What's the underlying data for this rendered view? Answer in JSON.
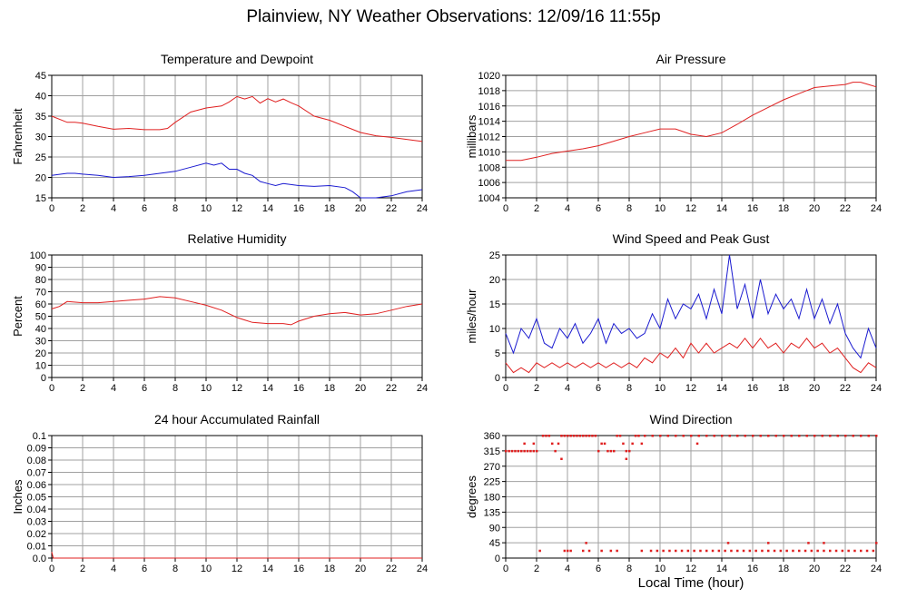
{
  "page": {
    "title": "Plainview, NY Weather Observations: 12/09/16 11:55p",
    "x_axis_title": "Local Time (hour)"
  },
  "colors": {
    "red": "#e02020",
    "blue": "#1a1ad0",
    "grid": "#a0a0a0"
  },
  "chart_data": [
    {
      "type": "line",
      "title": "Temperature and Dewpoint",
      "ylabel": "Fahrenheit",
      "xlim": [
        0,
        24
      ],
      "ylim": [
        15,
        45
      ],
      "xticks": [
        0,
        2,
        4,
        6,
        8,
        10,
        12,
        14,
        16,
        18,
        20,
        22,
        24
      ],
      "yticks": [
        15,
        20,
        25,
        30,
        35,
        40,
        45
      ],
      "grid": true,
      "series": [
        {
          "color": "red",
          "x": [
            0,
            1,
            1.5,
            2,
            3,
            4,
            5,
            6,
            7,
            7.5,
            8,
            9,
            10,
            11,
            11.5,
            12,
            12.5,
            13,
            13.5,
            14,
            14.5,
            15,
            15.5,
            16,
            17,
            18,
            19,
            20,
            21,
            22,
            23,
            24
          ],
          "y": [
            35,
            33.5,
            33.5,
            33.3,
            32.5,
            31.8,
            32,
            31.7,
            31.7,
            32,
            33.5,
            36,
            37,
            37.5,
            38.5,
            39.8,
            39.2,
            39.8,
            38.2,
            39.3,
            38.5,
            39.2,
            38.3,
            37.5,
            35,
            34,
            32.5,
            31,
            30.2,
            29.8,
            29.3,
            28.8
          ]
        },
        {
          "color": "blue",
          "x": [
            0,
            1,
            1.5,
            2,
            3,
            4,
            5,
            6,
            7,
            8,
            9,
            10,
            10.5,
            11,
            11.5,
            12,
            12.5,
            13,
            13.5,
            14,
            14.5,
            15,
            16,
            17,
            18,
            19,
            19.5,
            20,
            21,
            22,
            23,
            24
          ],
          "y": [
            20.5,
            21,
            21,
            20.8,
            20.5,
            20,
            20.2,
            20.5,
            21,
            21.5,
            22.5,
            23.5,
            23,
            23.5,
            22,
            22,
            21,
            20.5,
            19,
            18.5,
            18,
            18.5,
            18,
            17.8,
            18,
            17.5,
            16.5,
            15,
            15,
            15.5,
            16.5,
            17
          ]
        }
      ]
    },
    {
      "type": "line",
      "title": "Air Pressure",
      "ylabel": "millibars",
      "xlim": [
        0,
        24
      ],
      "ylim": [
        1004,
        1020
      ],
      "xticks": [
        0,
        2,
        4,
        6,
        8,
        10,
        12,
        14,
        16,
        18,
        20,
        22,
        24
      ],
      "yticks": [
        1004,
        1006,
        1008,
        1010,
        1012,
        1014,
        1016,
        1018,
        1020
      ],
      "grid": true,
      "series": [
        {
          "color": "red",
          "x": [
            0,
            1,
            2,
            3,
            4,
            5,
            6,
            7,
            8,
            9,
            10,
            11,
            12,
            13,
            14,
            15,
            16,
            17,
            18,
            19,
            20,
            21,
            22,
            22.5,
            23,
            23.5,
            24
          ],
          "y": [
            1008.9,
            1008.9,
            1009.3,
            1009.8,
            1010.1,
            1010.4,
            1010.8,
            1011.4,
            1012,
            1012.5,
            1013,
            1013,
            1012.3,
            1012,
            1012.5,
            1013.6,
            1014.8,
            1015.8,
            1016.8,
            1017.6,
            1018.4,
            1018.6,
            1018.8,
            1019.1,
            1019.1,
            1018.8,
            1018.5
          ]
        }
      ]
    },
    {
      "type": "line",
      "title": "Relative Humidity",
      "ylabel": "Percent",
      "xlim": [
        0,
        24
      ],
      "ylim": [
        0,
        100
      ],
      "xticks": [
        0,
        2,
        4,
        6,
        8,
        10,
        12,
        14,
        16,
        18,
        20,
        22,
        24
      ],
      "yticks": [
        0,
        10,
        20,
        30,
        40,
        50,
        60,
        70,
        80,
        90,
        100
      ],
      "grid": true,
      "series": [
        {
          "color": "red",
          "x": [
            0,
            0.5,
            1,
            2,
            3,
            4,
            5,
            6,
            7,
            8,
            9,
            10,
            11,
            12,
            12.5,
            13,
            14,
            15,
            15.5,
            16,
            17,
            18,
            19,
            20,
            21,
            22,
            23,
            24
          ],
          "y": [
            56,
            58,
            62,
            61,
            61,
            62,
            63,
            64,
            66,
            65,
            62,
            59,
            55,
            49,
            47,
            45,
            44,
            44,
            43,
            46,
            50,
            52,
            53,
            51,
            52,
            55,
            58,
            60
          ]
        }
      ]
    },
    {
      "type": "line",
      "title": "Wind Speed and Peak Gust",
      "ylabel": "miles/hour",
      "xlim": [
        0,
        24
      ],
      "ylim": [
        0,
        25
      ],
      "xticks": [
        0,
        2,
        4,
        6,
        8,
        10,
        12,
        14,
        16,
        18,
        20,
        22,
        24
      ],
      "yticks": [
        0,
        5,
        10,
        15,
        20,
        25
      ],
      "grid": true,
      "series": [
        {
          "color": "blue",
          "x": [
            0,
            0.5,
            1,
            1.5,
            2,
            2.5,
            3,
            3.5,
            4,
            4.5,
            5,
            5.5,
            6,
            6.5,
            7,
            7.5,
            8,
            8.5,
            9,
            9.5,
            10,
            10.5,
            11,
            11.5,
            12,
            12.5,
            13,
            13.5,
            14,
            14.5,
            15,
            15.5,
            16,
            16.5,
            17,
            17.5,
            18,
            18.5,
            19,
            19.5,
            20,
            20.5,
            21,
            21.5,
            22,
            22.5,
            23,
            23.5,
            24
          ],
          "y": [
            9,
            5,
            10,
            8,
            12,
            7,
            6,
            10,
            8,
            11,
            7,
            9,
            12,
            7,
            11,
            9,
            10,
            8,
            9,
            13,
            10,
            16,
            12,
            15,
            14,
            17,
            12,
            18,
            13,
            25,
            14,
            19,
            12,
            20,
            13,
            17,
            14,
            16,
            12,
            18,
            12,
            16,
            11,
            15,
            9,
            6,
            4,
            10,
            6
          ]
        },
        {
          "color": "red",
          "x": [
            0,
            0.5,
            1,
            1.5,
            2,
            2.5,
            3,
            3.5,
            4,
            4.5,
            5,
            5.5,
            6,
            6.5,
            7,
            7.5,
            8,
            8.5,
            9,
            9.5,
            10,
            10.5,
            11,
            11.5,
            12,
            12.5,
            13,
            13.5,
            14,
            14.5,
            15,
            15.5,
            16,
            16.5,
            17,
            17.5,
            18,
            18.5,
            19,
            19.5,
            20,
            20.5,
            21,
            21.5,
            22,
            22.5,
            23,
            23.5,
            24
          ],
          "y": [
            3,
            1,
            2,
            1,
            3,
            2,
            3,
            2,
            3,
            2,
            3,
            2,
            3,
            2,
            3,
            2,
            3,
            2,
            4,
            3,
            5,
            4,
            6,
            4,
            7,
            5,
            7,
            5,
            6,
            7,
            6,
            8,
            6,
            8,
            6,
            7,
            5,
            7,
            6,
            8,
            6,
            7,
            5,
            6,
            4,
            2,
            1,
            3,
            2
          ]
        }
      ]
    },
    {
      "type": "line",
      "title": "24 hour Accumulated Rainfall",
      "ylabel": "Inches",
      "xlim": [
        0,
        24
      ],
      "ylim": [
        0,
        0.1
      ],
      "xticks": [
        0,
        2,
        4,
        6,
        8,
        10,
        12,
        14,
        16,
        18,
        20,
        22,
        24
      ],
      "yticks": [
        0.0,
        0.01,
        0.02,
        0.03,
        0.04,
        0.05,
        0.06,
        0.07,
        0.08,
        0.09,
        0.1
      ],
      "ytick_labels": [
        "0.0",
        "0.01",
        "0.02",
        "0.03",
        "0.04",
        "0.05",
        "0.06",
        "0.07",
        "0.08",
        "0.09",
        "0.1"
      ],
      "grid": true,
      "series": [
        {
          "color": "red",
          "x": [
            0,
            0.1,
            24
          ],
          "y": [
            0.005,
            0,
            0
          ]
        }
      ]
    },
    {
      "type": "scatter",
      "title": "Wind Direction",
      "ylabel": "degrees",
      "xlim": [
        0,
        24
      ],
      "ylim": [
        0,
        360
      ],
      "xticks": [
        0,
        2,
        4,
        6,
        8,
        10,
        12,
        14,
        16,
        18,
        20,
        22,
        24
      ],
      "yticks": [
        0,
        45,
        90,
        135,
        180,
        225,
        270,
        315,
        360
      ],
      "grid": true,
      "series": [
        {
          "color": "red",
          "x": [
            0,
            0.2,
            0.4,
            0.6,
            0.8,
            1,
            1.2,
            1.4,
            1.6,
            1.8,
            2,
            1.2,
            1.8,
            2.4,
            2.6,
            2.8,
            3,
            3.2,
            3.4,
            3.6,
            3.8,
            4,
            4.2,
            4.4,
            4.6,
            4.8,
            5,
            5.2,
            5.4,
            5.6,
            5.8,
            6,
            6.2,
            6.4,
            6.6,
            6.8,
            7,
            7.2,
            7.4,
            7.6,
            7.8,
            8,
            8.2,
            8.4,
            8.6,
            8.8,
            9,
            9.5,
            10,
            10.5,
            11,
            11.5,
            12,
            12.5,
            13,
            13.5,
            14,
            14.5,
            15,
            15.5,
            16,
            16.5,
            17,
            17.5,
            18,
            18.5,
            19,
            19.5,
            20,
            20.5,
            21,
            21.5,
            22,
            22.5,
            23,
            23.5,
            24,
            2.2,
            3.8,
            4,
            4.2,
            5,
            5.4,
            6.2,
            6.8,
            7.2,
            8.8,
            9.4,
            9.8,
            10.2,
            10.6,
            11,
            11.4,
            11.8,
            12.2,
            12.6,
            13,
            13.4,
            13.8,
            14.2,
            14.6,
            15,
            15.4,
            15.8,
            16.2,
            16.6,
            17,
            17.4,
            17.8,
            18.2,
            18.6,
            19,
            19.4,
            19.8,
            20.2,
            20.6,
            21,
            21.4,
            21.8,
            22.2,
            22.6,
            23,
            23.4,
            23.8,
            3.6,
            7.8,
            12.4,
            5.2,
            14.4,
            17,
            19.6,
            20.6,
            24
          ],
          "y": [
            315,
            315,
            315,
            315,
            315,
            315,
            315,
            315,
            315,
            315,
            315,
            337,
            337,
            360,
            360,
            360,
            337,
            315,
            337,
            360,
            360,
            360,
            360,
            360,
            360,
            360,
            360,
            360,
            360,
            360,
            360,
            315,
            337,
            337,
            315,
            315,
            315,
            360,
            360,
            337,
            315,
            315,
            337,
            360,
            360,
            337,
            360,
            360,
            360,
            360,
            360,
            360,
            360,
            360,
            360,
            360,
            360,
            360,
            360,
            360,
            360,
            360,
            360,
            360,
            360,
            360,
            360,
            360,
            360,
            360,
            360,
            360,
            360,
            360,
            360,
            360,
            360,
            22,
            22,
            22,
            22,
            22,
            22,
            22,
            22,
            22,
            22,
            22,
            22,
            22,
            22,
            22,
            22,
            22,
            22,
            22,
            22,
            22,
            22,
            22,
            22,
            22,
            22,
            22,
            22,
            22,
            22,
            22,
            22,
            22,
            22,
            22,
            22,
            22,
            22,
            22,
            22,
            22,
            22,
            22,
            22,
            22,
            22,
            22,
            292,
            292,
            337,
            45,
            45,
            45,
            45,
            45,
            45
          ]
        }
      ]
    }
  ]
}
